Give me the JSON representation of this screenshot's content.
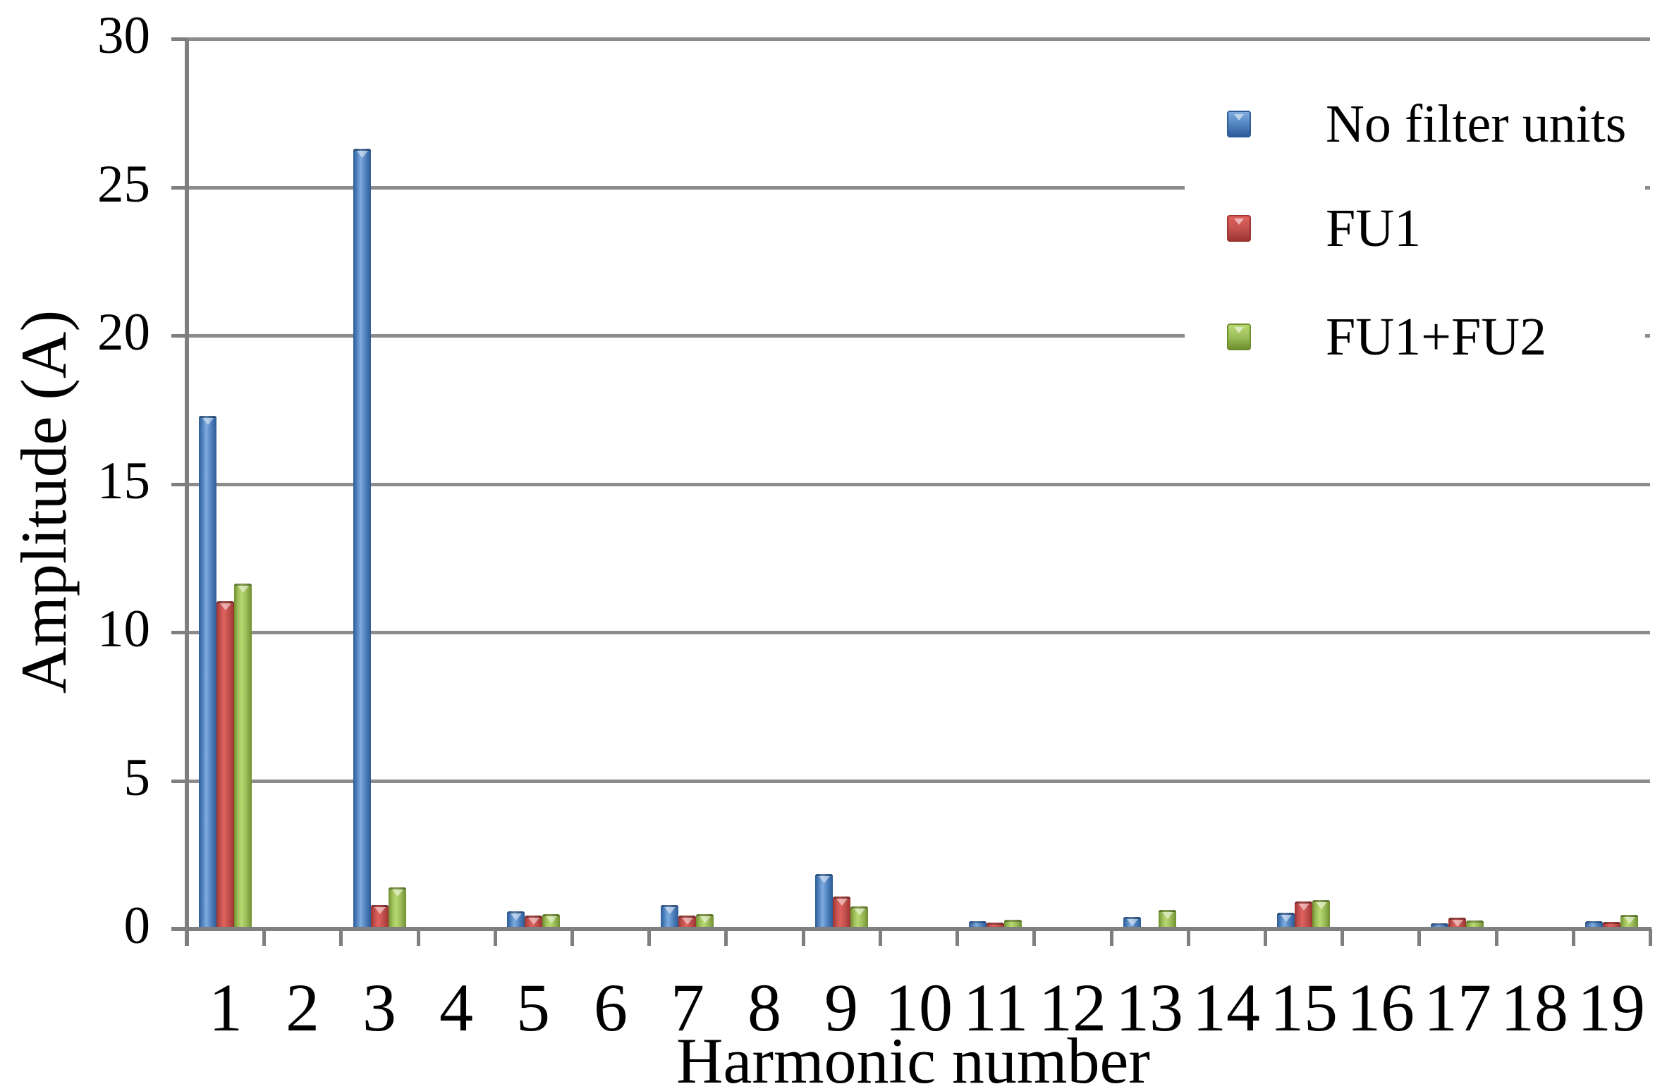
{
  "chart_data": {
    "type": "bar",
    "title": "",
    "xlabel": "Harmonic number",
    "ylabel": "Amplitude (A)",
    "categories": [
      "1",
      "2",
      "3",
      "4",
      "5",
      "6",
      "7",
      "8",
      "9",
      "10",
      "11",
      "12",
      "13",
      "14",
      "15",
      "16",
      "17",
      "18",
      "19"
    ],
    "ylim": [
      0,
      30
    ],
    "yticks": [
      0,
      5,
      10,
      15,
      20,
      25,
      30
    ],
    "grid": "horizontal",
    "legend_position": "inside-top-right",
    "series": [
      {
        "name": "No filter units",
        "color": "#4F81BD",
        "dark": "#2D5C98",
        "light": "#7FABDF",
        "values": [
          17.3,
          0,
          26.3,
          0,
          0.6,
          0,
          0.8,
          0,
          1.85,
          0,
          0.25,
          0,
          0.4,
          0,
          0.55,
          0,
          0.2,
          0,
          0.27
        ]
      },
      {
        "name": "FU1",
        "color": "#C0504D",
        "dark": "#9C3431",
        "light": "#E0625E",
        "values": [
          11.05,
          0,
          0.8,
          0,
          0.45,
          0,
          0.45,
          0,
          1.1,
          0,
          0.22,
          0,
          0,
          0,
          0.92,
          0,
          0.37,
          0,
          0.23
        ]
      },
      {
        "name": "FU1+FU2",
        "color": "#9BBB59",
        "dark": "#6F8F2F",
        "light": "#B8D871",
        "values": [
          11.65,
          0,
          1.4,
          0,
          0.5,
          0,
          0.5,
          0,
          0.75,
          0,
          0.3,
          0,
          0.65,
          0,
          0.97,
          0,
          0.28,
          0,
          0.48
        ]
      }
    ]
  },
  "colors": {
    "background": "#FFFFFF",
    "gridline": "#8C8C8C",
    "axis": "#7F7F7F",
    "text": "#000000",
    "legend_background": "#FFFFFF"
  }
}
